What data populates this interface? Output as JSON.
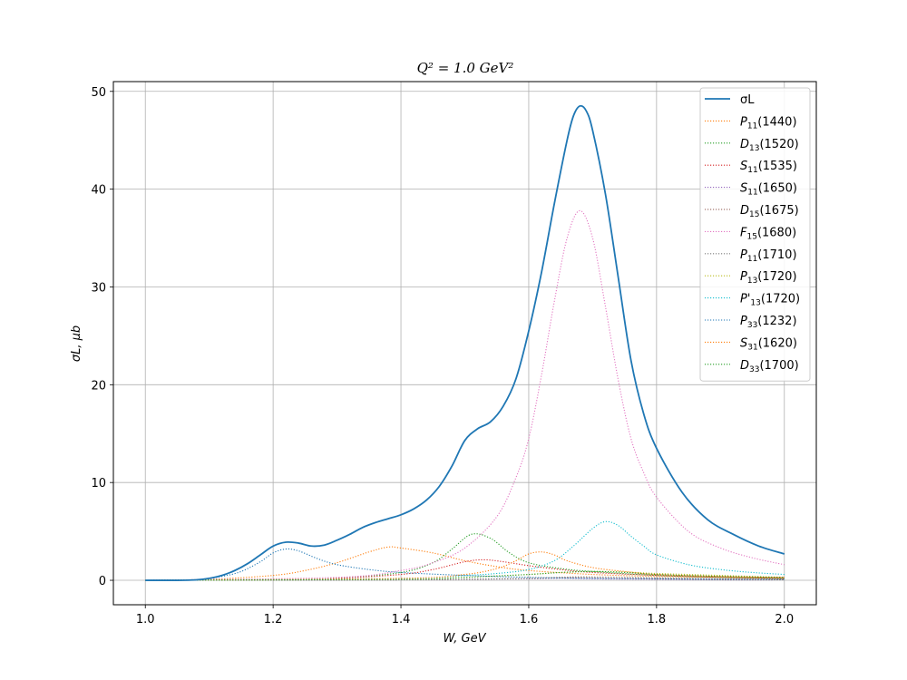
{
  "chart_data": {
    "type": "line",
    "title": "Q² = 1.0 GeV²",
    "xlabel": "W, GeV",
    "ylabel": "σL, μb",
    "xlim": [
      0.95,
      2.05
    ],
    "ylim": [
      -2.5,
      51
    ],
    "xticks": [
      1.0,
      1.2,
      1.4,
      1.6,
      1.8,
      2.0
    ],
    "xtick_labels": [
      "1.0",
      "1.2",
      "1.4",
      "1.6",
      "1.8",
      "2.0"
    ],
    "yticks": [
      0,
      10,
      20,
      30,
      40,
      50
    ],
    "ytick_labels": [
      "0",
      "10",
      "20",
      "30",
      "40",
      "50"
    ],
    "grid": true,
    "legend_position": "top-right",
    "series": [
      {
        "name": "σL",
        "color": "#1f77b4",
        "style": "solid",
        "x": [
          1.0,
          1.05,
          1.08,
          1.1,
          1.12,
          1.14,
          1.16,
          1.18,
          1.2,
          1.22,
          1.24,
          1.26,
          1.28,
          1.3,
          1.32,
          1.34,
          1.36,
          1.38,
          1.4,
          1.42,
          1.44,
          1.46,
          1.48,
          1.5,
          1.52,
          1.54,
          1.56,
          1.58,
          1.6,
          1.62,
          1.64,
          1.66,
          1.67,
          1.68,
          1.69,
          1.7,
          1.72,
          1.74,
          1.76,
          1.78,
          1.8,
          1.84,
          1.88,
          1.92,
          1.96,
          2.0
        ],
        "values": [
          0.0,
          0.0,
          0.05,
          0.2,
          0.5,
          1.0,
          1.7,
          2.6,
          3.5,
          3.9,
          3.8,
          3.5,
          3.6,
          4.1,
          4.7,
          5.4,
          5.9,
          6.3,
          6.7,
          7.3,
          8.2,
          9.6,
          11.7,
          14.3,
          15.5,
          16.2,
          17.8,
          20.6,
          25.5,
          31.5,
          38.5,
          45.0,
          47.5,
          48.5,
          48.0,
          46.0,
          39.5,
          31.0,
          22.5,
          17.0,
          13.5,
          9.0,
          6.2,
          4.7,
          3.5,
          2.7
        ]
      },
      {
        "name": "P11(1440)",
        "color": "#ff7f0e",
        "style": "dotted",
        "x": [
          1.0,
          1.1,
          1.2,
          1.25,
          1.3,
          1.35,
          1.38,
          1.4,
          1.45,
          1.5,
          1.55,
          1.6,
          1.7,
          1.8,
          1.9,
          2.0
        ],
        "values": [
          0.0,
          0.1,
          0.5,
          1.0,
          1.8,
          2.9,
          3.4,
          3.3,
          2.8,
          2.0,
          1.4,
          1.0,
          0.6,
          0.4,
          0.3,
          0.2
        ]
      },
      {
        "name": "D13(1520)",
        "color": "#2ca02c",
        "style": "dotted",
        "x": [
          1.0,
          1.2,
          1.3,
          1.4,
          1.45,
          1.48,
          1.51,
          1.54,
          1.57,
          1.6,
          1.65,
          1.7,
          1.8,
          1.9,
          2.0
        ],
        "values": [
          0.0,
          0.05,
          0.2,
          0.8,
          1.8,
          3.2,
          4.7,
          4.3,
          2.8,
          1.8,
          1.2,
          0.9,
          0.5,
          0.3,
          0.2
        ]
      },
      {
        "name": "S11(1535)",
        "color": "#d62728",
        "style": "dotted",
        "x": [
          1.0,
          1.2,
          1.3,
          1.4,
          1.45,
          1.5,
          1.53,
          1.56,
          1.6,
          1.65,
          1.7,
          1.8,
          1.9,
          2.0
        ],
        "values": [
          0.0,
          0.05,
          0.2,
          0.6,
          1.1,
          1.9,
          2.1,
          1.9,
          1.5,
          1.1,
          0.8,
          0.5,
          0.3,
          0.2
        ]
      },
      {
        "name": "S11(1650)",
        "color": "#9467bd",
        "style": "dotted",
        "x": [
          1.0,
          1.4,
          1.5,
          1.6,
          1.65,
          1.7,
          1.8,
          1.9,
          2.0
        ],
        "values": [
          0.0,
          0.05,
          0.1,
          0.15,
          0.2,
          0.15,
          0.1,
          0.05,
          0.05
        ]
      },
      {
        "name": "D15(1675)",
        "color": "#8c564b",
        "style": "dotted",
        "x": [
          1.0,
          1.4,
          1.5,
          1.6,
          1.65,
          1.68,
          1.72,
          1.8,
          1.9,
          2.0
        ],
        "values": [
          0.0,
          0.05,
          0.1,
          0.2,
          0.3,
          0.35,
          0.3,
          0.2,
          0.1,
          0.05
        ]
      },
      {
        "name": "F15(1680)",
        "color": "#e377c2",
        "style": "dotted",
        "x": [
          1.0,
          1.3,
          1.4,
          1.45,
          1.5,
          1.55,
          1.58,
          1.6,
          1.62,
          1.64,
          1.66,
          1.68,
          1.7,
          1.72,
          1.74,
          1.76,
          1.78,
          1.8,
          1.85,
          1.9,
          1.95,
          2.0
        ],
        "values": [
          0.0,
          0.3,
          1.0,
          1.8,
          3.3,
          6.5,
          10.5,
          14.5,
          21.0,
          28.5,
          35.0,
          37.8,
          35.0,
          28.0,
          20.5,
          14.5,
          11.0,
          8.5,
          5.0,
          3.3,
          2.3,
          1.6
        ]
      },
      {
        "name": "P11(1710)",
        "color": "#7f7f7f",
        "style": "dotted",
        "x": [
          1.0,
          1.4,
          1.5,
          1.6,
          1.7,
          1.8,
          1.9,
          2.0
        ],
        "values": [
          0.0,
          0.05,
          0.1,
          0.2,
          0.3,
          0.25,
          0.15,
          0.1
        ]
      },
      {
        "name": "P13(1720)",
        "color": "#bcbd22",
        "style": "dotted",
        "x": [
          1.0,
          1.4,
          1.5,
          1.6,
          1.65,
          1.7,
          1.75,
          1.8,
          1.9,
          2.0
        ],
        "values": [
          0.0,
          0.1,
          0.3,
          0.6,
          0.8,
          0.9,
          0.85,
          0.7,
          0.5,
          0.3
        ]
      },
      {
        "name": "P'13(1720)",
        "color": "#17becf",
        "style": "dotted",
        "x": [
          1.0,
          1.4,
          1.5,
          1.55,
          1.6,
          1.64,
          1.67,
          1.7,
          1.72,
          1.74,
          1.76,
          1.78,
          1.8,
          1.85,
          1.9,
          1.95,
          2.0
        ],
        "values": [
          0.0,
          0.2,
          0.5,
          0.7,
          1.1,
          2.0,
          3.5,
          5.3,
          6.0,
          5.6,
          4.5,
          3.5,
          2.6,
          1.6,
          1.1,
          0.8,
          0.6
        ]
      },
      {
        "name": "P33(1232)",
        "color": "#1f77b4",
        "style": "dotted",
        "x": [
          1.0,
          1.08,
          1.12,
          1.15,
          1.18,
          1.2,
          1.22,
          1.24,
          1.27,
          1.3,
          1.35,
          1.4,
          1.5,
          1.6,
          1.7,
          1.8,
          1.9,
          2.0
        ],
        "values": [
          0.0,
          0.05,
          0.4,
          0.9,
          1.9,
          2.8,
          3.2,
          3.0,
          2.2,
          1.6,
          1.1,
          0.8,
          0.5,
          0.3,
          0.2,
          0.15,
          0.1,
          0.1
        ]
      },
      {
        "name": "S31(1620)",
        "color": "#ff7f0e",
        "style": "dotted",
        "x": [
          1.0,
          1.4,
          1.5,
          1.55,
          1.58,
          1.6,
          1.62,
          1.64,
          1.66,
          1.7,
          1.75,
          1.8,
          1.9,
          2.0
        ],
        "values": [
          0.0,
          0.2,
          0.6,
          1.2,
          2.0,
          2.7,
          2.9,
          2.6,
          2.0,
          1.3,
          0.9,
          0.6,
          0.4,
          0.3
        ]
      },
      {
        "name": "D33(1700)",
        "color": "#2ca02c",
        "style": "dotted",
        "x": [
          1.0,
          1.4,
          1.5,
          1.6,
          1.65,
          1.7,
          1.75,
          1.8,
          1.9,
          2.0
        ],
        "values": [
          0.0,
          0.1,
          0.3,
          0.6,
          0.8,
          0.9,
          0.8,
          0.6,
          0.4,
          0.3
        ]
      }
    ]
  }
}
